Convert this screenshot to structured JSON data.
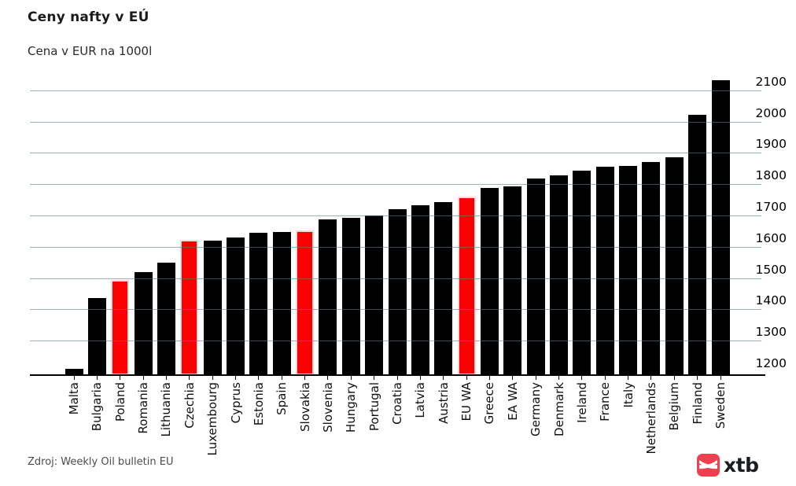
{
  "title": "Ceny nafty v EÚ",
  "subtitle": "Cena v EUR na 1000l",
  "source": "Zdroj: Weekly Oil bulletin EU",
  "logo": {
    "text": "xtb",
    "icon": "xtb-swoosh-icon",
    "icon_color": "#ee4150",
    "text_color": "#1a1c21"
  },
  "chart_data": {
    "type": "bar",
    "title": "Ceny nafty v EÚ",
    "subtitle": "Cena v EUR na 1000l",
    "xlabel": "",
    "ylabel": "EUR na 1000l",
    "categories": [
      "Malta",
      "Bulgaria",
      "Poland",
      "Romania",
      "Lithuania",
      "Czechia",
      "Luxembourg",
      "Cyprus",
      "Estonia",
      "Spain",
      "Slovakia",
      "Slovenia",
      "Hungary",
      "Portugal",
      "Croatia",
      "Latvia",
      "Austria",
      "EU WA",
      "Greece",
      "EA WA",
      "Germany",
      "Denmark",
      "Ireland",
      "France",
      "Italy",
      "Netherlands",
      "Belgium",
      "Finland",
      "Sweden"
    ],
    "values": [
      1210,
      1437,
      1494,
      1519,
      1549,
      1622,
      1620,
      1630,
      1646,
      1648,
      1652,
      1688,
      1692,
      1700,
      1720,
      1734,
      1744,
      1761,
      1788,
      1794,
      1818,
      1829,
      1843,
      1855,
      1859,
      1872,
      1887,
      2023,
      2132
    ],
    "highlighted_categories": [
      "Poland",
      "Czechia",
      "Slovakia",
      "EU WA"
    ],
    "highlighted_indices": [
      2,
      5,
      10,
      17
    ],
    "bar_color": "#000000",
    "highlight_color": "#fa0000",
    "highlight_stroke": "#ffd9d9",
    "gridline_color": "#a7bac5",
    "grid": true,
    "ylim": [
      1190,
      2140
    ],
    "yticks": [
      1200,
      1300,
      1400,
      1500,
      1600,
      1700,
      1800,
      1900,
      2000,
      2100
    ],
    "ytick_side": "right",
    "xlabel_rotation": -90
  }
}
